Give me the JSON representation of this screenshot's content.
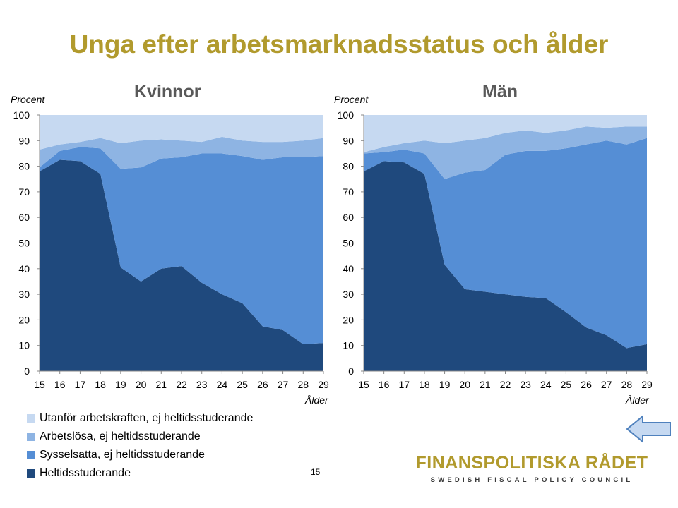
{
  "title": "Unga efter arbetsmarknadsstatus och ålder",
  "page_number": "15",
  "logo": {
    "name": "FINANSPOLITISKA RÅDET",
    "tagline": "SWEDISH FISCAL POLICY COUNCIL"
  },
  "navigation": {
    "icon": "left-arrow-icon"
  },
  "colors": {
    "utanfor": "#c6d9f1",
    "arbetslosa": "#8eb4e3",
    "sysselsatta": "#558ed5",
    "heltid": "#1f497d",
    "title": "#b19a2d"
  },
  "legend": [
    {
      "label": "Utanför arbetskraften, ej heltidsstuderande",
      "color": "#c6d9f1"
    },
    {
      "label": "Arbetslösa, ej heltidsstuderande",
      "color": "#8eb4e3"
    },
    {
      "label": "Sysselsatta, ej heltidsstuderande",
      "color": "#558ed5"
    },
    {
      "label": "Heltidsstuderande",
      "color": "#1f497d"
    }
  ],
  "chart_data": [
    {
      "type": "area",
      "stacked": true,
      "title": "Kvinnor",
      "ylabel": "Procent",
      "xlabel": "Ålder",
      "ylim": [
        0,
        100
      ],
      "yticks": [
        0,
        10,
        20,
        30,
        40,
        50,
        60,
        70,
        80,
        90,
        100
      ],
      "x": [
        15,
        16,
        17,
        18,
        19,
        20,
        21,
        22,
        23,
        24,
        25,
        26,
        27,
        28,
        29
      ],
      "series": [
        {
          "name": "Heltidsstuderande",
          "values": [
            78,
            82.5,
            82,
            77,
            40.5,
            35,
            40,
            41,
            34.5,
            30,
            26.5,
            17.5,
            16,
            10.5,
            11
          ]
        },
        {
          "name": "Sysselsatta, ej heltidsstuderande",
          "values": [
            1.5,
            3.5,
            5.5,
            10,
            38.5,
            44.5,
            43,
            42.5,
            50.5,
            55,
            57.5,
            65,
            67.5,
            73,
            73
          ]
        },
        {
          "name": "Arbetslösa, ej heltidsstuderande",
          "values": [
            7,
            2.5,
            2,
            4,
            10,
            10.5,
            7.5,
            6.5,
            4.5,
            6.5,
            6,
            7,
            6,
            6.5,
            7
          ]
        },
        {
          "name": "Utanför arbetskraften, ej heltidsstuderande",
          "values": [
            13.5,
            11.5,
            10.5,
            9,
            11,
            10,
            9.5,
            10,
            10.5,
            8.5,
            10,
            10.5,
            10.5,
            10,
            9
          ]
        }
      ]
    },
    {
      "type": "area",
      "stacked": true,
      "title": "Män",
      "ylabel": "Procent",
      "xlabel": "Ålder",
      "ylim": [
        0,
        100
      ],
      "yticks": [
        0,
        10,
        20,
        30,
        40,
        50,
        60,
        70,
        80,
        90,
        100
      ],
      "x": [
        15,
        16,
        17,
        18,
        19,
        20,
        21,
        22,
        23,
        24,
        25,
        26,
        27,
        28,
        29
      ],
      "series": [
        {
          "name": "Heltidsstuderande",
          "values": [
            78,
            82,
            81.5,
            77,
            41.5,
            32,
            31,
            30,
            29,
            28.5,
            23,
            17,
            14,
            9,
            10.5
          ]
        },
        {
          "name": "Sysselsatta, ej heltidsstuderande",
          "values": [
            7,
            3.5,
            5,
            8,
            33.5,
            45.5,
            47.5,
            54.5,
            57,
            57.5,
            64,
            71.5,
            76,
            79.5,
            80.5
          ]
        },
        {
          "name": "Arbetslösa, ej heltidsstuderande",
          "values": [
            0.5,
            2,
            2.5,
            5,
            14,
            12.5,
            12.5,
            8.5,
            8,
            7,
            7,
            7,
            5,
            7,
            4.5
          ]
        },
        {
          "name": "Utanför arbetskraften, ej heltidsstuderande",
          "values": [
            14.5,
            12.5,
            11,
            10,
            11,
            10,
            9,
            7,
            6,
            7,
            6,
            4.5,
            5,
            4.5,
            4.5
          ]
        }
      ]
    }
  ]
}
